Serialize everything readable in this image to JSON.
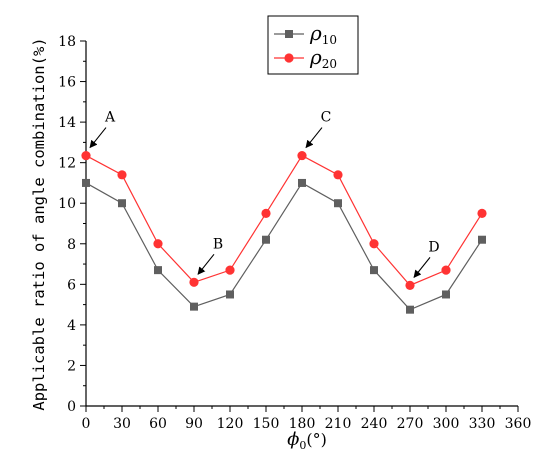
{
  "chart_data": {
    "type": "line",
    "xlabel_symbol": "ϕ",
    "xlabel_sub": "0",
    "xlabel_unit": "(°)",
    "ylabel": "Applicable ratio of angle combination(%)",
    "xlim": [
      0,
      360
    ],
    "ylim": [
      0,
      18
    ],
    "xticks": [
      0,
      30,
      60,
      90,
      120,
      150,
      180,
      210,
      240,
      270,
      300,
      330,
      360
    ],
    "yticks": [
      0,
      2,
      4,
      6,
      8,
      10,
      12,
      14,
      16,
      18
    ],
    "x": [
      0,
      30,
      60,
      90,
      120,
      150,
      180,
      210,
      240,
      270,
      300,
      330
    ],
    "series": [
      {
        "symbol": "ρ",
        "sub": "10",
        "color": "#5f5f5f",
        "marker": "square",
        "values": [
          11.0,
          10.0,
          6.7,
          4.9,
          5.5,
          8.2,
          11.0,
          10.0,
          6.7,
          4.75,
          5.5,
          8.2
        ]
      },
      {
        "symbol": "ρ",
        "sub": "20",
        "color": "#ff3333",
        "marker": "circle",
        "values": [
          12.35,
          11.4,
          8.0,
          6.1,
          6.7,
          9.5,
          12.35,
          11.4,
          8.0,
          5.95,
          6.7,
          9.5
        ]
      }
    ],
    "legend_position": "top-center",
    "grid": false,
    "annotations": [
      {
        "label": "A",
        "x": 0,
        "y": 12.35
      },
      {
        "label": "B",
        "x": 90,
        "y": 6.1
      },
      {
        "label": "C",
        "x": 180,
        "y": 12.35
      },
      {
        "label": "D",
        "x": 270,
        "y": 5.95
      }
    ]
  }
}
